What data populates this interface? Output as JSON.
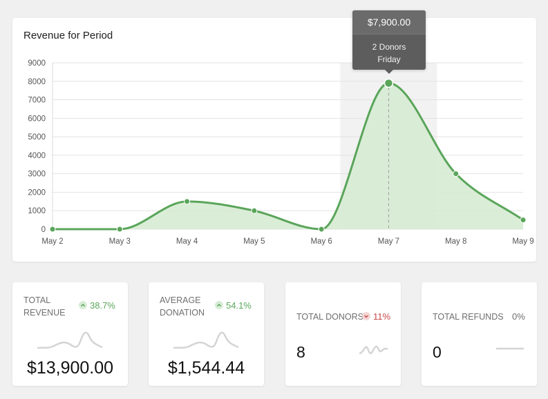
{
  "chart_data": {
    "type": "area",
    "title": "Revenue for Period",
    "categories": [
      "May 2",
      "May 3",
      "May 4",
      "May 5",
      "May 6",
      "May 7",
      "May 8",
      "May 9"
    ],
    "values": [
      0,
      0,
      1500,
      1000,
      0,
      7900,
      3000,
      500
    ],
    "yticks": [
      "9000",
      "8000",
      "7000",
      "6000",
      "5000",
      "4000",
      "3000",
      "2000",
      "1000",
      "0"
    ],
    "ylim": [
      0,
      9000
    ],
    "grid": true,
    "line_color": "#5aa55a",
    "fill_color": "#d6ebd3",
    "highlight_index": 5
  },
  "tooltip": {
    "amount": "$7,900.00",
    "donors": "2 Donors",
    "day": "Friday"
  },
  "stats": [
    {
      "label": "TOTAL REVENUE",
      "change": "38.7%",
      "direction": "up",
      "value": "$13,900.00"
    },
    {
      "label": "AVERAGE DONATION",
      "change": "54.1%",
      "direction": "up",
      "value": "$1,544.44"
    },
    {
      "label": "TOTAL DONORS",
      "change": "11%",
      "direction": "down",
      "value": "8"
    },
    {
      "label": "TOTAL REFUNDS",
      "change": "0%",
      "direction": "flat",
      "value": "0"
    }
  ],
  "colors": {
    "positive": "#5aa55a",
    "negative": "#c9494b",
    "sparkline": "#d4d4d4"
  }
}
